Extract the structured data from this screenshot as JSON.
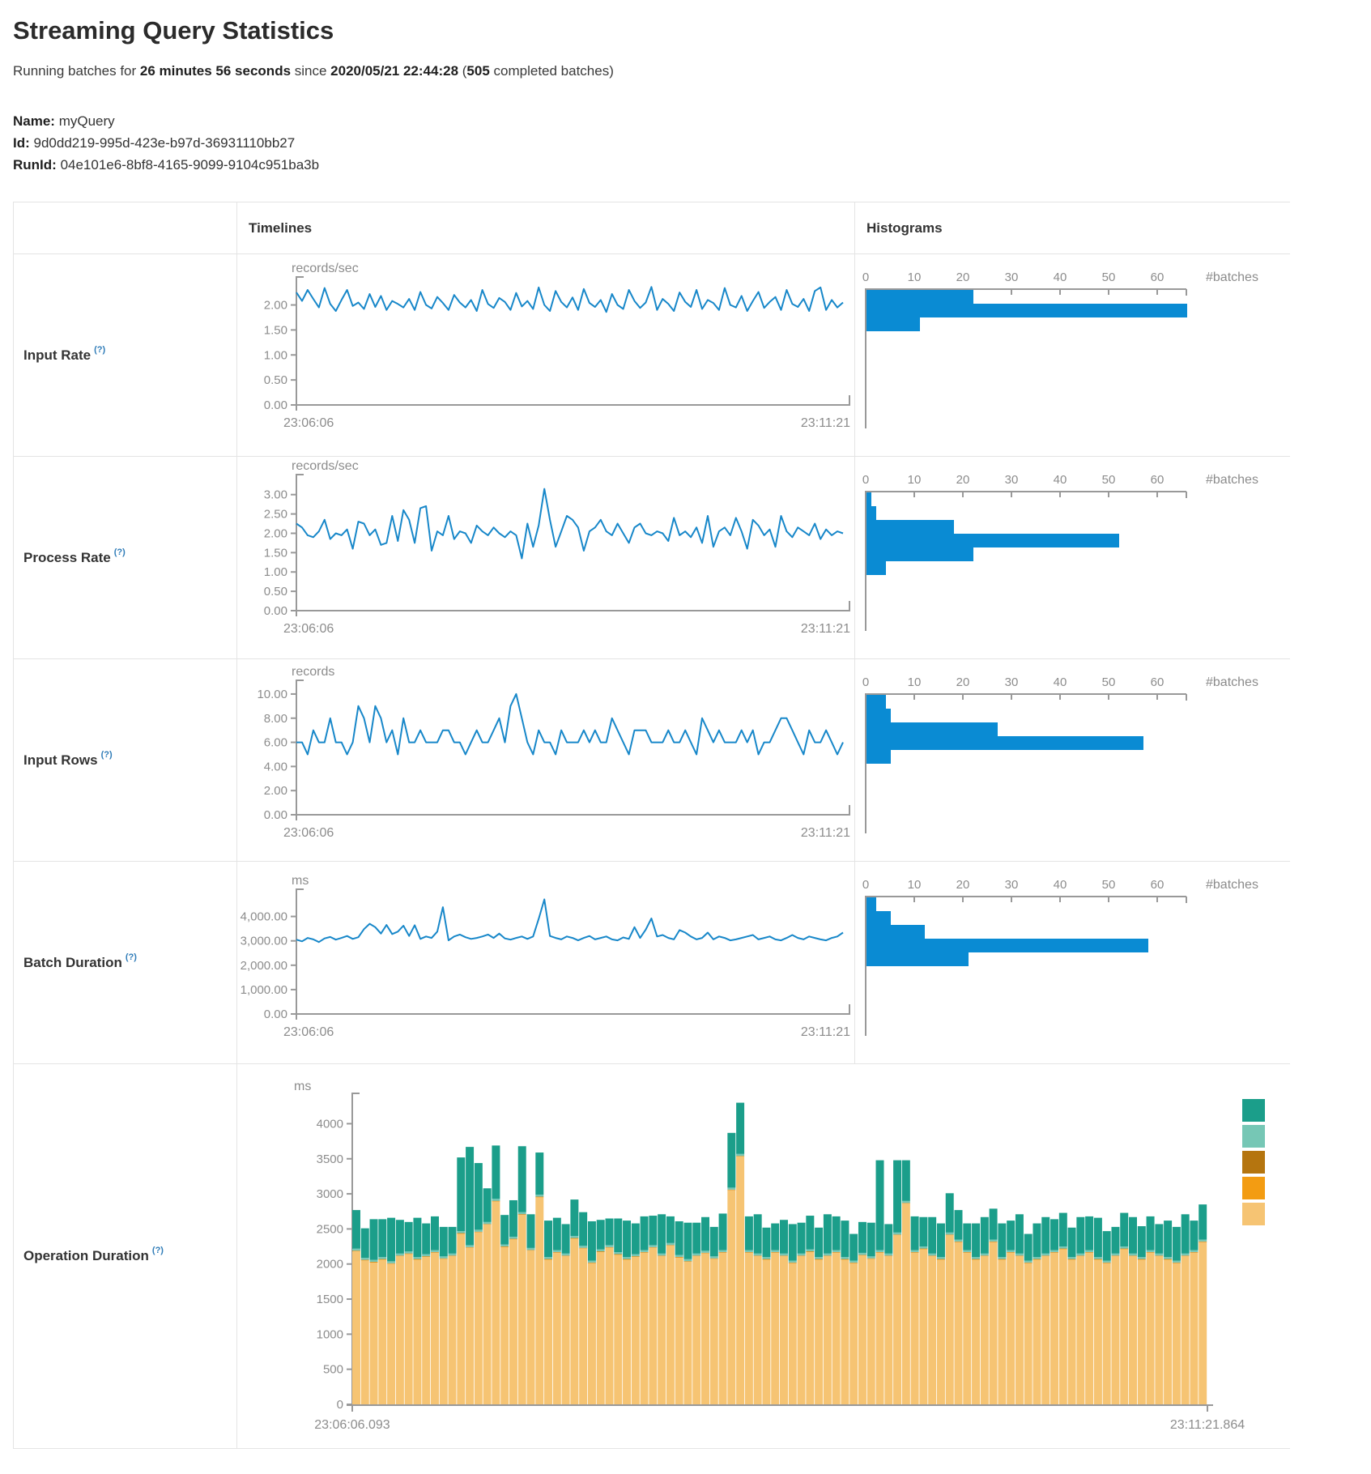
{
  "page": {
    "title": "Streaming Query Statistics"
  },
  "subtitle": {
    "pre": "Running batches for ",
    "duration": "26 minutes 56 seconds",
    "since": " since ",
    "start_time": "2020/05/21 22:44:28",
    "open_paren": " (",
    "completed_count": "505",
    "post": " completed batches)"
  },
  "meta": {
    "name_label": "Name:",
    "name_value": "myQuery",
    "id_label": "Id:",
    "id_value": "9d0dd219-995d-423e-b97d-36931110bb27",
    "runid_label": "RunId:",
    "runid_value": "04e101e6-8bf8-4165-9099-9104c951ba3b"
  },
  "table": {
    "col_timelines": "Timelines",
    "col_histograms": "Histograms"
  },
  "metrics": [
    {
      "label": "Input Rate",
      "help": "(?)"
    },
    {
      "label": "Process Rate",
      "help": "(?)"
    },
    {
      "label": "Input Rows",
      "help": "(?)"
    },
    {
      "label": "Batch Duration",
      "help": "(?)"
    },
    {
      "label": "Operation Duration",
      "help": "(?)"
    }
  ],
  "colors": {
    "line": "#1787c9",
    "hist": "#0a8bd3",
    "axis": "#999999",
    "tick_text": "#8c8c8c"
  },
  "chart_data": [
    {
      "id": "input_rate_timeline",
      "type": "line",
      "metric": "Input Rate",
      "unit": "records/sec",
      "xlabels": [
        "23:06:06",
        "23:11:21"
      ],
      "ylim": [
        0,
        2.43
      ],
      "yticks": [
        {
          "v": 2.0,
          "label": "2.00"
        },
        {
          "v": 1.5,
          "label": "1.50"
        },
        {
          "v": 1.0,
          "label": "1.00"
        },
        {
          "v": 0.5,
          "label": "0.50"
        },
        {
          "v": 0.0,
          "label": "0.00"
        }
      ],
      "values": [
        2.25,
        2.08,
        2.3,
        2.12,
        1.95,
        2.34,
        2.02,
        1.88,
        2.1,
        2.3,
        1.98,
        2.05,
        1.92,
        2.22,
        1.96,
        2.18,
        1.9,
        2.08,
        2.02,
        1.95,
        2.12,
        1.9,
        2.26,
        2.0,
        1.93,
        2.16,
        2.04,
        1.9,
        2.2,
        2.05,
        1.95,
        2.1,
        1.88,
        2.3,
        2.02,
        1.94,
        2.14,
        2.06,
        1.9,
        2.24,
        1.97,
        2.08,
        1.92,
        2.35,
        2.0,
        1.88,
        2.28,
        2.06,
        1.95,
        2.15,
        1.9,
        2.32,
        2.04,
        1.96,
        2.1,
        1.86,
        2.22,
        2.0,
        1.92,
        2.3,
        2.08,
        1.94,
        2.05,
        2.36,
        1.9,
        2.12,
        2.02,
        1.88,
        2.25,
        2.06,
        1.96,
        2.3,
        1.92,
        2.1,
        2.04,
        1.9,
        2.34,
        2.0,
        1.95,
        2.18,
        1.88,
        2.08,
        2.26,
        1.94,
        2.06,
        2.16,
        1.9,
        2.3,
        2.02,
        1.96,
        2.12,
        1.88,
        2.28,
        2.35,
        1.9,
        2.1,
        1.95,
        2.05
      ]
    },
    {
      "id": "input_rate_histogram",
      "type": "bar",
      "metric": "Input Rate",
      "orientation": "horizontal",
      "xlabel": "#batches",
      "xticks": [
        0,
        10,
        20,
        30,
        40,
        50,
        60
      ],
      "values": [
        22,
        66,
        11
      ]
    },
    {
      "id": "process_rate_timeline",
      "type": "line",
      "metric": "Process Rate",
      "unit": "records/sec",
      "xlabels": [
        "23:06:06",
        "23:11:21"
      ],
      "ylim": [
        0,
        3.35
      ],
      "yticks": [
        {
          "v": 3.0,
          "label": "3.00"
        },
        {
          "v": 2.5,
          "label": "2.50"
        },
        {
          "v": 2.0,
          "label": "2.00"
        },
        {
          "v": 1.5,
          "label": "1.50"
        },
        {
          "v": 1.0,
          "label": "1.00"
        },
        {
          "v": 0.5,
          "label": "0.50"
        },
        {
          "v": 0.0,
          "label": "0.00"
        }
      ],
      "values": [
        2.25,
        2.15,
        1.95,
        1.9,
        2.05,
        2.35,
        1.85,
        2.0,
        1.95,
        2.1,
        1.6,
        2.3,
        2.25,
        1.95,
        2.1,
        1.7,
        1.75,
        2.45,
        1.8,
        2.6,
        2.35,
        1.75,
        2.65,
        2.7,
        1.55,
        2.05,
        1.95,
        2.45,
        1.85,
        2.05,
        2.0,
        1.75,
        2.2,
        2.05,
        1.95,
        2.15,
        2.0,
        1.9,
        2.05,
        1.95,
        1.35,
        2.25,
        1.65,
        2.2,
        3.15,
        2.35,
        1.65,
        2.05,
        2.45,
        2.35,
        2.15,
        1.55,
        2.05,
        2.15,
        2.35,
        2.05,
        1.95,
        2.25,
        2.0,
        1.75,
        2.15,
        2.25,
        2.0,
        1.95,
        2.05,
        2.0,
        1.8,
        2.4,
        1.95,
        2.05,
        1.9,
        2.15,
        1.75,
        2.45,
        1.65,
        2.05,
        2.15,
        1.95,
        2.4,
        2.05,
        1.6,
        2.35,
        2.2,
        1.95,
        2.1,
        1.65,
        2.45,
        2.05,
        1.9,
        2.15,
        2.05,
        1.95,
        2.25,
        1.85,
        2.1,
        1.95,
        2.05,
        2.0
      ]
    },
    {
      "id": "process_rate_histogram",
      "type": "bar",
      "metric": "Process Rate",
      "orientation": "horizontal",
      "xlabel": "#batches",
      "xticks": [
        0,
        10,
        20,
        30,
        40,
        50,
        60
      ],
      "values": [
        1,
        2,
        18,
        52,
        22,
        4
      ]
    },
    {
      "id": "input_rows_timeline",
      "type": "line",
      "metric": "Input Rows",
      "unit": "records",
      "xlabels": [
        "23:06:06",
        "23:11:21"
      ],
      "ylim": [
        0,
        10.6
      ],
      "yticks": [
        {
          "v": 10,
          "label": "10.00"
        },
        {
          "v": 8,
          "label": "8.00"
        },
        {
          "v": 6,
          "label": "6.00"
        },
        {
          "v": 4,
          "label": "4.00"
        },
        {
          "v": 2,
          "label": "2.00"
        },
        {
          "v": 0,
          "label": "0.00"
        }
      ],
      "values": [
        6,
        6,
        5,
        7,
        6,
        6,
        8,
        6,
        6,
        5,
        6,
        9,
        8,
        6,
        9,
        8,
        6,
        7,
        5,
        8,
        6,
        6,
        7,
        6,
        6,
        6,
        7,
        7,
        6,
        6,
        5,
        6,
        7,
        6,
        6,
        7,
        8,
        6,
        9,
        10,
        8,
        6,
        5,
        7,
        6,
        6,
        5,
        7,
        6,
        6,
        6,
        7,
        6,
        7,
        6,
        6,
        8,
        7,
        6,
        5,
        7,
        7,
        7,
        6,
        6,
        6,
        7,
        6,
        6,
        7,
        6,
        5,
        8,
        7,
        6,
        7,
        6,
        6,
        6,
        7,
        6,
        7,
        5,
        6,
        6,
        7,
        8,
        8,
        7,
        6,
        5,
        7,
        6,
        6,
        7,
        6,
        5,
        6
      ]
    },
    {
      "id": "input_rows_histogram",
      "type": "bar",
      "metric": "Input Rows",
      "orientation": "horizontal",
      "xlabel": "#batches",
      "xticks": [
        0,
        10,
        20,
        30,
        40,
        50,
        60
      ],
      "values": [
        4,
        5,
        27,
        57,
        5
      ]
    },
    {
      "id": "batch_duration_timeline",
      "type": "line",
      "metric": "Batch Duration",
      "unit": "ms",
      "xlabels": [
        "23:06:06",
        "23:11:21"
      ],
      "ylim": [
        0,
        4850
      ],
      "yticks": [
        {
          "v": 4000,
          "label": "4,000.00"
        },
        {
          "v": 3000,
          "label": "3,000.00"
        },
        {
          "v": 2000,
          "label": "2,000.00"
        },
        {
          "v": 1000,
          "label": "1,000.00"
        },
        {
          "v": 0,
          "label": "0.00"
        }
      ],
      "values": [
        3050,
        2980,
        3120,
        3060,
        2950,
        3100,
        3160,
        3050,
        3120,
        3200,
        3080,
        3150,
        3480,
        3700,
        3560,
        3300,
        3650,
        3280,
        3380,
        3620,
        3200,
        3640,
        3080,
        3180,
        3120,
        3380,
        4380,
        3020,
        3180,
        3260,
        3150,
        3080,
        3120,
        3180,
        3260,
        3120,
        3300,
        3100,
        3050,
        3120,
        3180,
        3080,
        3180,
        3900,
        4700,
        3200,
        3120,
        3060,
        3180,
        3120,
        3020,
        3120,
        3200,
        3060,
        3120,
        3180,
        3060,
        3020,
        3140,
        3080,
        3560,
        3120,
        3460,
        3920,
        3180,
        3240,
        3120,
        3060,
        3440,
        3340,
        3180,
        3060,
        3120,
        3340,
        3060,
        3180,
        3120,
        3020,
        3060,
        3120,
        3180,
        3240,
        3060,
        3120,
        3180,
        3060,
        3020,
        3120,
        3240,
        3120,
        3060,
        3180,
        3120,
        3060,
        3020,
        3120,
        3180,
        3340
      ]
    },
    {
      "id": "batch_duration_histogram",
      "type": "bar",
      "metric": "Batch Duration",
      "orientation": "horizontal",
      "xlabel": "#batches",
      "xticks": [
        0,
        10,
        20,
        30,
        40,
        50,
        60
      ],
      "values": [
        2,
        5,
        12,
        58,
        21
      ]
    },
    {
      "id": "operation_duration",
      "type": "stacked-bar",
      "metric": "Operation Duration",
      "unit": "ms",
      "xlabels": [
        "23:06:06.093",
        "23:11:21.864"
      ],
      "ylim": [
        0,
        4340
      ],
      "yticks": [
        {
          "v": 4000,
          "label": "4000"
        },
        {
          "v": 3500,
          "label": "3500"
        },
        {
          "v": 3000,
          "label": "3000"
        },
        {
          "v": 2500,
          "label": "2500"
        },
        {
          "v": 2000,
          "label": "2000"
        },
        {
          "v": 1500,
          "label": "1500"
        },
        {
          "v": 1000,
          "label": "1000"
        },
        {
          "v": 500,
          "label": "500"
        },
        {
          "v": 0,
          "label": "0"
        }
      ],
      "legend": [
        "#1B9E8A",
        "#76C7B5",
        "#B5750F",
        "#F39C12",
        "#F6C473"
      ],
      "series": [
        {
          "color": "#F6C473",
          "values": [
            2180,
            2050,
            2020,
            2060,
            2000,
            2110,
            2140,
            2060,
            2100,
            2160,
            2070,
            2110,
            2430,
            2230,
            2450,
            2560,
            2890,
            2240,
            2350,
            2700,
            2190,
            2950,
            2060,
            2160,
            2110,
            2360,
            2220,
            2010,
            2170,
            2230,
            2130,
            2060,
            2100,
            2160,
            2230,
            2110,
            2260,
            2090,
            2030,
            2110,
            2150,
            2070,
            2160,
            3050,
            3530,
            2160,
            2110,
            2060,
            2160,
            2110,
            2010,
            2110,
            2170,
            2060,
            2110,
            2160,
            2060,
            2010,
            2120,
            2070,
            2160,
            2110,
            2410,
            2860,
            2160,
            2210,
            2110,
            2060,
            2410,
            2310,
            2160,
            2060,
            2110,
            2310,
            2060,
            2160,
            2110,
            2010,
            2060,
            2110,
            2160,
            2210,
            2060,
            2110,
            2160,
            2060,
            2010,
            2110,
            2210,
            2110,
            2060,
            2160,
            2110,
            2060,
            2010,
            2110,
            2160,
            2310
          ]
        },
        {
          "color": "#F39C12",
          "const": 6
        },
        {
          "color": "#B5750F",
          "const": 5
        },
        {
          "color": "#76C7B5",
          "const": 28
        },
        {
          "color": "#1B9E8A",
          "values": [
            550,
            420,
            580,
            540,
            620,
            480,
            420,
            560,
            440,
            480,
            420,
            380,
            1050,
            1400,
            950,
            480,
            760,
            420,
            520,
            940,
            480,
            600,
            520,
            460,
            420,
            520,
            480,
            560,
            420,
            380,
            480,
            520,
            440,
            480,
            420,
            560,
            380,
            480,
            520,
            440,
            480,
            420,
            520,
            780,
            730,
            480,
            560,
            420,
            380,
            480,
            520,
            440,
            480,
            420,
            560,
            480,
            520,
            380,
            440,
            480,
            1280,
            420,
            1030,
            580,
            480,
            420,
            520,
            480,
            560,
            420,
            380,
            480,
            520,
            440,
            480,
            420,
            560,
            380,
            480,
            520,
            440,
            480,
            420,
            520,
            480,
            560,
            420,
            380,
            480,
            520,
            440,
            480,
            420,
            520,
            480,
            560,
            420,
            500
          ]
        }
      ]
    }
  ]
}
